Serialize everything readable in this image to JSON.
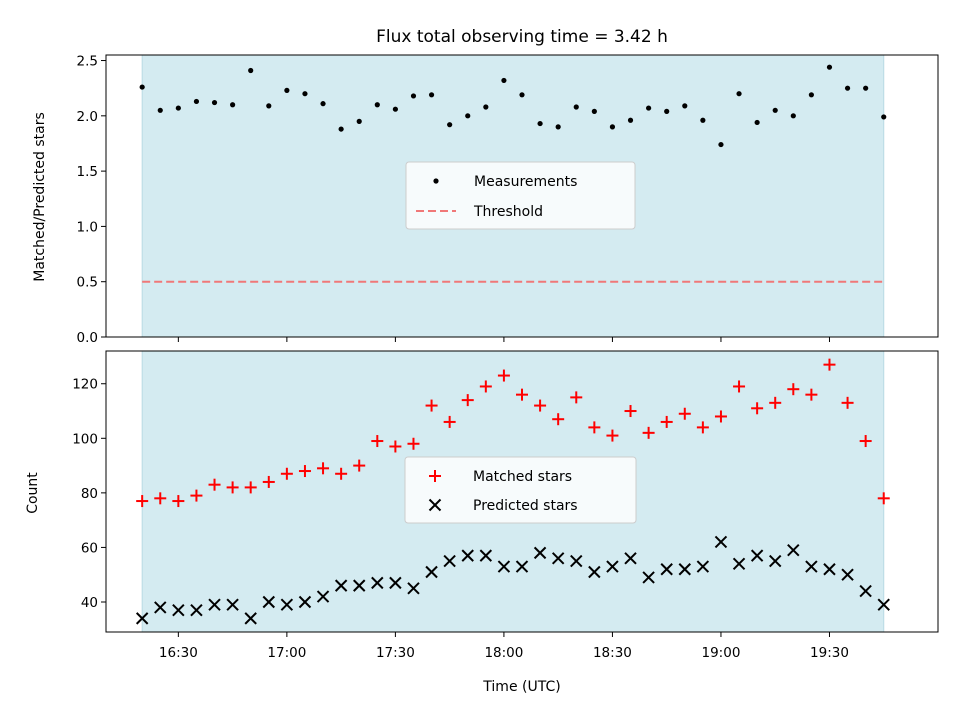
{
  "chart_data": [
    {
      "type": "scatter",
      "title": "Flux total observing time = 3.42 h",
      "ylabel": "Matched/Predicted stars",
      "ylim": [
        0,
        2.55
      ],
      "yticks": [
        0.0,
        0.5,
        1.0,
        1.5,
        2.0,
        2.5
      ],
      "ytick_labels": [
        "0.0",
        "0.5",
        "1.0",
        "1.5",
        "2.0",
        "2.5"
      ],
      "x_range": [
        "16:10",
        "20:00"
      ],
      "shaded_span": [
        "16:20",
        "19:45"
      ],
      "shade_color": "#d4ebf1",
      "legend_position": "center",
      "x": [
        "16:20",
        "16:25",
        "16:30",
        "16:35",
        "16:40",
        "16:45",
        "16:50",
        "16:55",
        "17:00",
        "17:05",
        "17:10",
        "17:15",
        "17:20",
        "17:25",
        "17:30",
        "17:35",
        "17:40",
        "17:45",
        "17:50",
        "17:55",
        "18:00",
        "18:05",
        "18:10",
        "18:15",
        "18:20",
        "18:25",
        "18:30",
        "18:35",
        "18:40",
        "18:45",
        "18:50",
        "18:55",
        "19:00",
        "19:05",
        "19:10",
        "19:15",
        "19:20",
        "19:25",
        "19:30",
        "19:35",
        "19:40",
        "19:45"
      ],
      "series": [
        {
          "name": "Measurements",
          "color": "#000000",
          "values": [
            2.26,
            2.05,
            2.07,
            2.13,
            2.12,
            2.1,
            2.41,
            2.09,
            2.23,
            2.2,
            2.11,
            1.88,
            1.95,
            2.1,
            2.06,
            2.18,
            2.19,
            1.92,
            2.0,
            2.08,
            2.32,
            2.19,
            1.93,
            1.9,
            2.08,
            2.04,
            1.9,
            1.96,
            2.07,
            2.04,
            2.09,
            1.96,
            1.74,
            2.2,
            1.94,
            2.05,
            2.0,
            2.19,
            2.44,
            2.25,
            2.25,
            1.99
          ]
        },
        {
          "name": "Threshold",
          "color": "#f07878",
          "value": 0.5
        }
      ]
    },
    {
      "type": "scatter",
      "xlabel": "Time (UTC)",
      "ylabel": "Count",
      "ylim": [
        29,
        132
      ],
      "yticks": [
        40,
        60,
        80,
        100,
        120
      ],
      "ytick_labels": [
        "40",
        "60",
        "80",
        "100",
        "120"
      ],
      "x_range": [
        "16:10",
        "20:00"
      ],
      "xticks": [
        "16:30",
        "17:00",
        "17:30",
        "18:00",
        "18:30",
        "19:00",
        "19:30"
      ],
      "shaded_span": [
        "16:20",
        "19:45"
      ],
      "shade_color": "#d4ebf1",
      "legend_position": "center",
      "x": [
        "16:20",
        "16:25",
        "16:30",
        "16:35",
        "16:40",
        "16:45",
        "16:50",
        "16:55",
        "17:00",
        "17:05",
        "17:10",
        "17:15",
        "17:20",
        "17:25",
        "17:30",
        "17:35",
        "17:40",
        "17:45",
        "17:50",
        "17:55",
        "18:00",
        "18:05",
        "18:10",
        "18:15",
        "18:20",
        "18:25",
        "18:30",
        "18:35",
        "18:40",
        "18:45",
        "18:50",
        "18:55",
        "19:00",
        "19:05",
        "19:10",
        "19:15",
        "19:20",
        "19:25",
        "19:30",
        "19:35",
        "19:40",
        "19:45"
      ],
      "series": [
        {
          "name": "Matched stars",
          "color": "#ff0000",
          "values": [
            77,
            78,
            77,
            79,
            83,
            82,
            82,
            84,
            87,
            88,
            89,
            87,
            90,
            99,
            97,
            98,
            112,
            106,
            114,
            119,
            123,
            116,
            112,
            107,
            115,
            104,
            101,
            110,
            102,
            106,
            109,
            104,
            108,
            119,
            111,
            113,
            118,
            116,
            127,
            113,
            99,
            78
          ]
        },
        {
          "name": "Predicted stars",
          "color": "#000000",
          "values": [
            34,
            38,
            37,
            37,
            39,
            39,
            34,
            40,
            39,
            40,
            42,
            46,
            46,
            47,
            47,
            45,
            51,
            55,
            57,
            57,
            53,
            53,
            58,
            56,
            55,
            51,
            53,
            56,
            49,
            52,
            52,
            53,
            62,
            54,
            57,
            55,
            59,
            53,
            52,
            50,
            44,
            39
          ]
        }
      ]
    }
  ]
}
